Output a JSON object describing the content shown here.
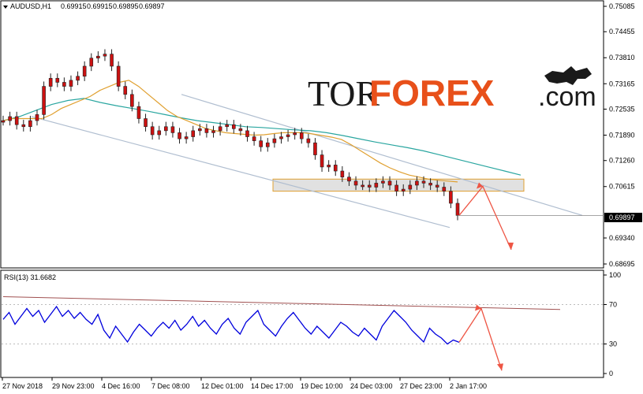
{
  "chart_data": [
    {
      "type": "line",
      "title": "AUDUSD,H1",
      "ohlc": {
        "open": "0.69915",
        "high": "0.69915",
        "low": "0.69895",
        "close": "0.69897"
      },
      "current_price": "0.69897",
      "ylim": [
        0.68695,
        0.75085
      ],
      "y_ticks": [
        "0.75085",
        "0.74455",
        "0.73810",
        "0.73165",
        "0.72535",
        "0.71890",
        "0.71260",
        "0.70615",
        "0.69340",
        "0.68695"
      ],
      "x_ticks": [
        "27 Nov 2018",
        "29 Nov 23:00",
        "4 Dec 16:00",
        "7 Dec 08:00",
        "12 Dec 01:00",
        "14 Dec 17:00",
        "19 Dec 10:00",
        "24 Dec 03:00",
        "27 Dec 23:00",
        "2 Jan 17:00"
      ],
      "series": [
        {
          "values": [
            0.7225,
            0.7235,
            0.7215,
            0.721,
            0.7225,
            0.724,
            0.731,
            0.733,
            0.732,
            0.731,
            0.7325,
            0.7335,
            0.736,
            0.738,
            0.7385,
            0.739,
            0.736,
            0.731,
            0.729,
            0.726,
            0.723,
            0.721,
            0.719,
            0.72,
            0.721,
            0.7195,
            0.718,
            0.7185,
            0.72,
            0.7205,
            0.7195,
            0.72,
            0.721,
            0.7215,
            0.7205,
            0.72,
            0.7185,
            0.7175,
            0.716,
            0.717,
            0.718,
            0.7185,
            0.719,
            0.7195,
            0.718,
            0.717,
            0.714,
            0.711,
            0.7115,
            0.71,
            0.7085,
            0.7075,
            0.7065,
            0.7065,
            0.706,
            0.707,
            0.7075,
            0.7065,
            0.705,
            0.7055,
            0.7065,
            0.7075,
            0.707,
            0.7065,
            0.706,
            0.705,
            0.702,
            0.699
          ]
        },
        {
          "values": [
            0.7225,
            0.723,
            0.723,
            0.723,
            0.723,
            0.724,
            0.7255,
            0.7265,
            0.7275,
            0.7285,
            0.73,
            0.731,
            0.732,
            0.7325,
            0.731,
            0.729,
            0.727,
            0.725,
            0.7235,
            0.7225,
            0.7215,
            0.7205,
            0.72,
            0.7195,
            0.7193,
            0.7191,
            0.7189,
            0.719,
            0.7193,
            0.7195,
            0.7195,
            0.7195,
            0.7192,
            0.7188,
            0.7184,
            0.7178,
            0.7165,
            0.715,
            0.7135,
            0.712,
            0.7108,
            0.7098,
            0.709,
            0.7085,
            0.708,
            0.7077,
            0.7075,
            0.7073
          ]
        },
        {
          "values": [
            0.7225,
            0.7235,
            0.725,
            0.7265,
            0.7275,
            0.728,
            0.727,
            0.7262,
            0.7255,
            0.7248,
            0.724,
            0.7232,
            0.7225,
            0.722,
            0.7215,
            0.721,
            0.7208,
            0.7205,
            0.7202,
            0.72,
            0.7195,
            0.7188,
            0.718,
            0.7172,
            0.7165,
            0.7158,
            0.715,
            0.714,
            0.713,
            0.712,
            0.711,
            0.71,
            0.709
          ]
        }
      ],
      "channel": {
        "upper": [
          0.729,
          0.699
        ],
        "lower": [
          0.7235,
          0.696
        ]
      },
      "resistance_zone": [
        0.705,
        0.708
      ],
      "forecast_path": [
        0.699,
        0.7062,
        0.6905
      ]
    },
    {
      "type": "line",
      "title": "RSI(13) 31.6682",
      "ylim": [
        0,
        100
      ],
      "y_ticks": [
        "100",
        "70",
        "30",
        "0"
      ],
      "series": [
        {
          "values": [
            55,
            62,
            50,
            58,
            66,
            58,
            64,
            52,
            60,
            68,
            58,
            64,
            56,
            62,
            55,
            50,
            60,
            44,
            36,
            48,
            40,
            32,
            42,
            50,
            44,
            38,
            46,
            52,
            46,
            54,
            44,
            50,
            58,
            48,
            54,
            46,
            40,
            50,
            56,
            46,
            40,
            52,
            58,
            64,
            50,
            44,
            38,
            48,
            56,
            62,
            54,
            46,
            40,
            48,
            42,
            36,
            44,
            52,
            48,
            42,
            38,
            46,
            40,
            34,
            48,
            56,
            64,
            58,
            52,
            44,
            38,
            32,
            46,
            40,
            36,
            30,
            34,
            31.67
          ]
        }
      ],
      "trendline": [
        78,
        65
      ],
      "forecast_path": [
        31.67,
        66,
        3
      ]
    }
  ],
  "watermark": {
    "part1": "TOR",
    "part2": "FOREX",
    "part3": ".com"
  },
  "colors": {
    "candles": "#cc1111",
    "candle_wicks": "#222222",
    "ma_fast": "#e0a030",
    "ma_slow": "#2aa6a0",
    "channel": "#b0bed0",
    "zone_fill": "#d9d9d9",
    "zone_border": "#e0a030",
    "forecast": "#ee5544",
    "rsi_line": "#0000dd",
    "rsi_trend": "#a05050",
    "logo_accent": "#e8501a"
  }
}
